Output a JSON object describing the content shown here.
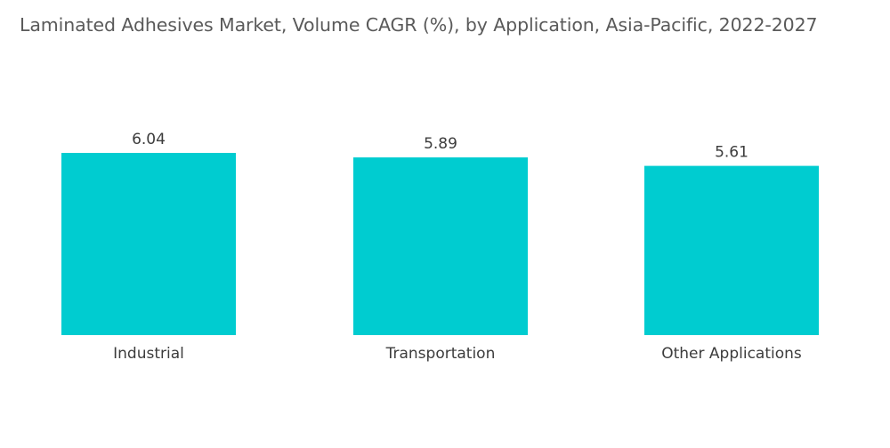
{
  "chart_data": {
    "type": "bar",
    "title": "Laminated Adhesives Market, Volume CAGR (%), by Application, Asia-Pacific, 2022-2027",
    "categories": [
      "Industrial",
      "Transportation",
      "Other Applications"
    ],
    "values": [
      6.04,
      5.89,
      5.61
    ],
    "value_labels": [
      "6.04",
      "5.89",
      "5.61"
    ],
    "xlabel": "",
    "ylabel": "",
    "ylim": [
      0,
      6.04
    ],
    "grid": false,
    "legend": "none",
    "bar_color": "#00CCD0"
  }
}
